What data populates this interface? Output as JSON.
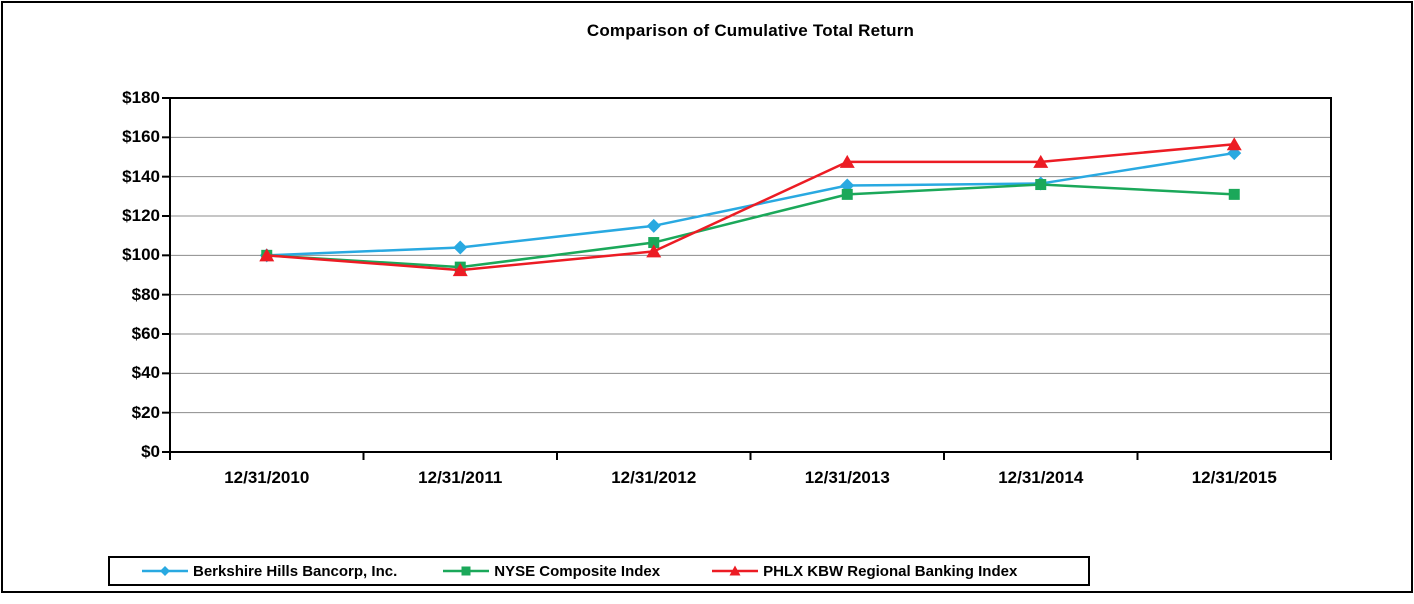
{
  "chart_data": {
    "type": "line",
    "title": "Comparison of Cumulative Total Return",
    "categories": [
      "12/31/2010",
      "12/31/2011",
      "12/31/2012",
      "12/31/2013",
      "12/31/2014",
      "12/31/2015"
    ],
    "y_tick_labels": [
      "$180",
      "$160",
      "$140",
      "$120",
      "$100",
      "$80",
      "$60",
      "$40",
      "$20",
      "$0"
    ],
    "ylim": [
      0,
      180
    ],
    "y_step": 20,
    "grid": "horizontal",
    "legend_position": "bottom",
    "series": [
      {
        "name": "Berkshire Hills Bancorp, Inc.",
        "marker": "diamond",
        "color": "#29A9E1",
        "values": [
          100,
          104,
          115,
          135.5,
          136.5,
          152
        ]
      },
      {
        "name": "NYSE Composite Index",
        "marker": "square",
        "color": "#1BA85A",
        "values": [
          100,
          94,
          106.5,
          131,
          136,
          131
        ]
      },
      {
        "name": "PHLX KBW Regional Banking Index",
        "marker": "triangle",
        "color": "#EC1C24",
        "values": [
          100,
          92.5,
          102,
          147.5,
          147.5,
          156.5
        ]
      }
    ],
    "colors": {
      "axis": "#000000",
      "gridline": "#8C8C8C",
      "background": "#FFFFFF"
    }
  }
}
